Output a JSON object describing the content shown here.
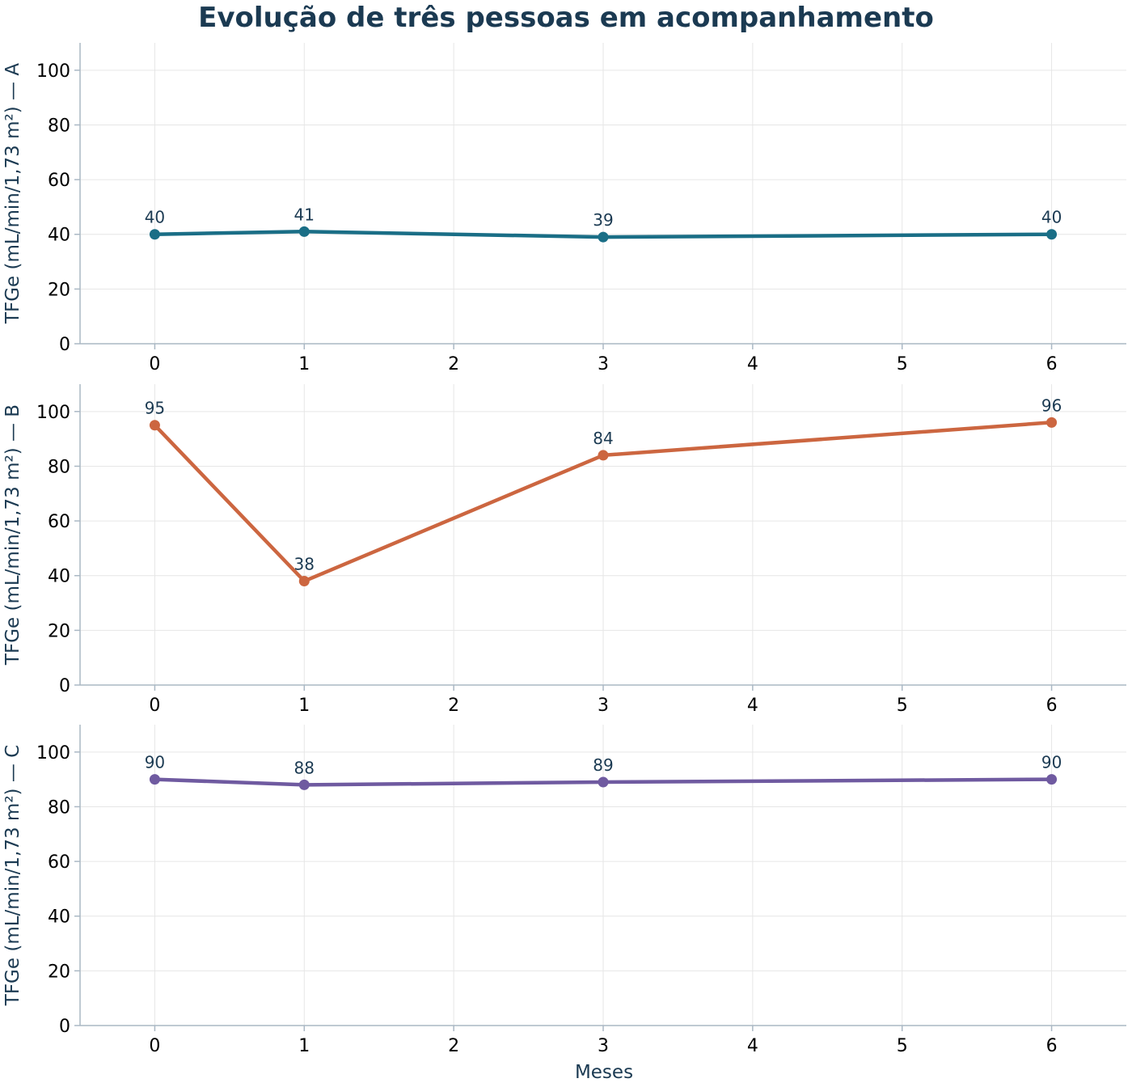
{
  "title": "Evolução de três pessoas em acompanhamento",
  "chart_data": {
    "type": "line",
    "xlabel": "Meses",
    "xlim": [
      -0.5,
      6.5
    ],
    "xticks": [
      0,
      1,
      2,
      3,
      4,
      5,
      6
    ],
    "ylim": [
      0,
      110
    ],
    "yticks": [
      0,
      20,
      40,
      60,
      80,
      100
    ],
    "grid": true,
    "panels": [
      {
        "ylabel": "TFGe (mL/min/1,73 m²) — A",
        "color": "#1a6e86",
        "x": [
          0,
          1,
          3,
          6
        ],
        "values": [
          40,
          41,
          39,
          40
        ]
      },
      {
        "ylabel": "TFGe (mL/min/1,73 m²) — B",
        "color": "#cc6640",
        "x": [
          0,
          1,
          3,
          6
        ],
        "values": [
          95,
          38,
          84,
          96
        ]
      },
      {
        "ylabel": "TFGe (mL/min/1,73 m²) — C",
        "color": "#6f5aa0",
        "x": [
          0,
          1,
          3,
          6
        ],
        "values": [
          90,
          88,
          89,
          90
        ]
      }
    ]
  }
}
